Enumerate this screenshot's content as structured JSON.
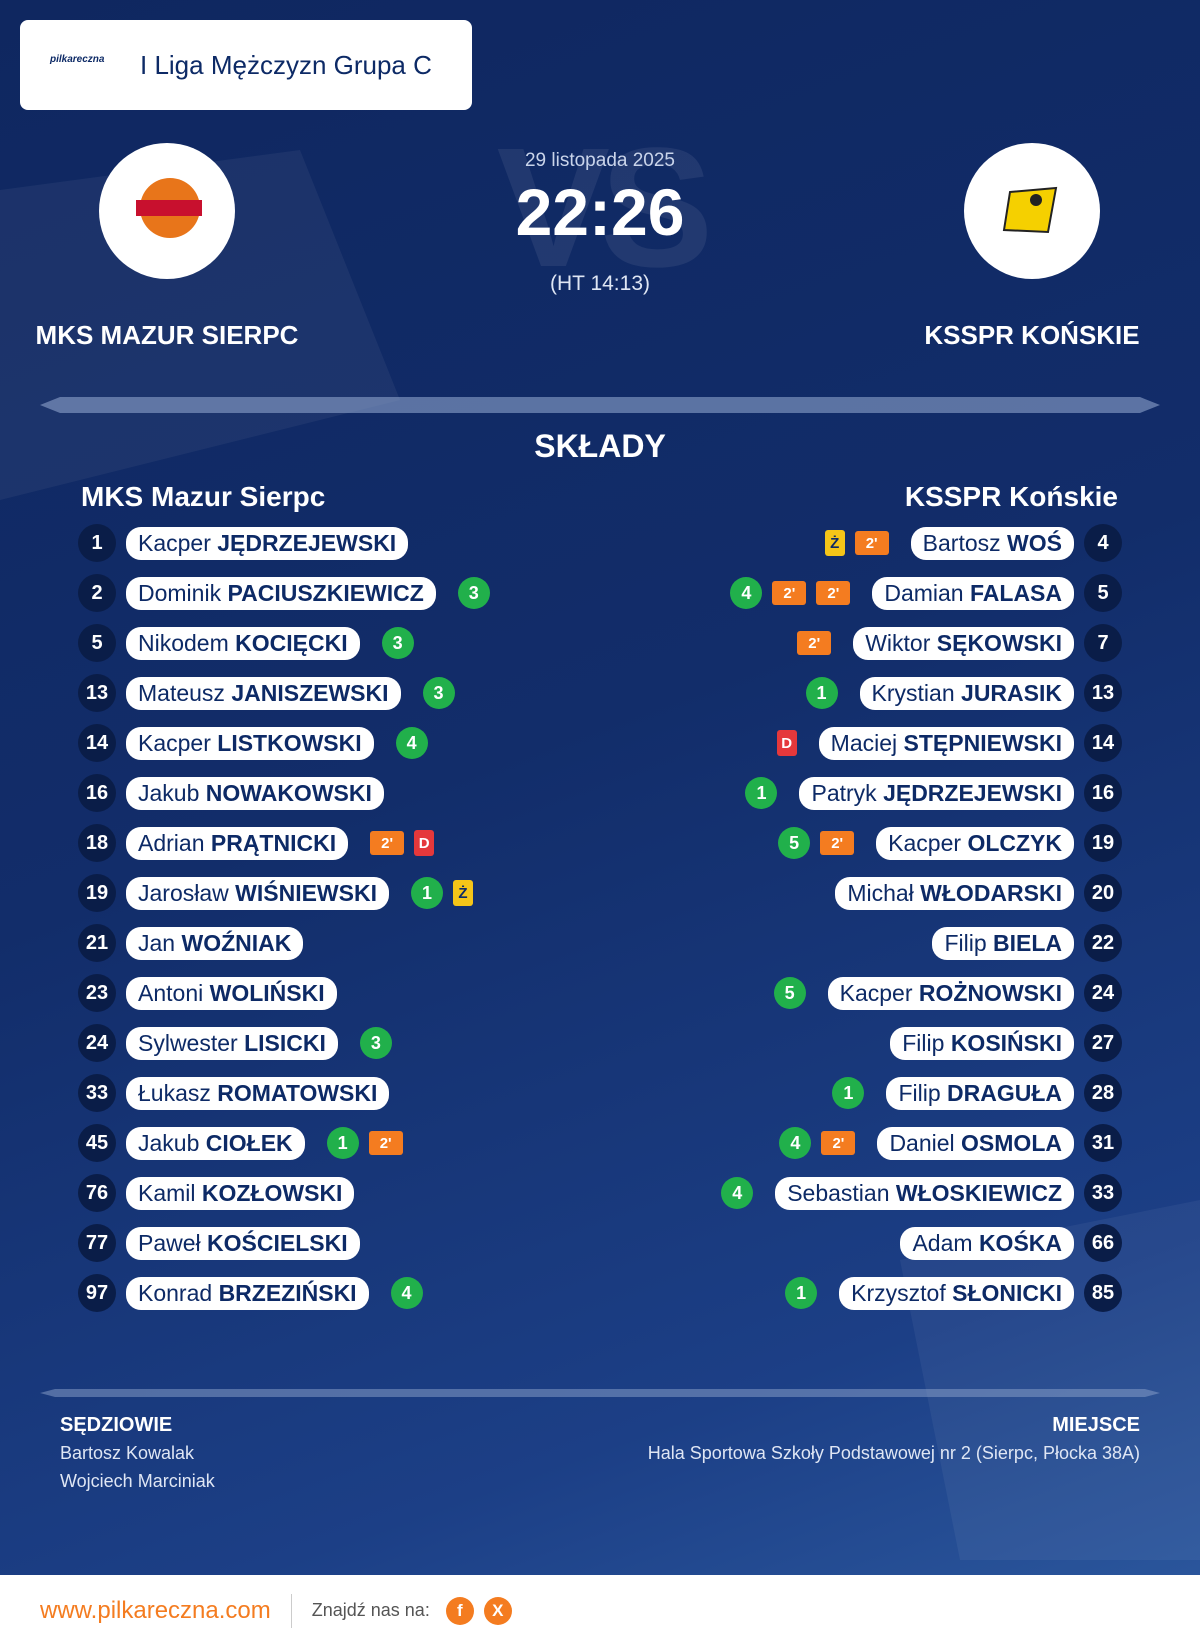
{
  "header": {
    "logo_text": "pilkareczna",
    "league": "I Liga Mężczyzn Grupa C"
  },
  "match": {
    "watermark": "VS",
    "date": "29 listopada 2025",
    "score": "22:26",
    "half_time": "(HT 14:13)",
    "home_team": "MKS MAZUR SIERPC",
    "away_team": "KSSPR KOŃSKIE"
  },
  "lineups": {
    "title": "SKŁADY",
    "home": {
      "name": "MKS Mazur Sierpc",
      "players": [
        {
          "number": 1,
          "first": "Kacper",
          "last": "JĘDRZEJEWSKI"
        },
        {
          "number": 2,
          "first": "Dominik",
          "last": "PACIUSZKIEWICZ",
          "goals": 3
        },
        {
          "number": 5,
          "first": "Nikodem",
          "last": "KOCIĘCKI",
          "goals": 3
        },
        {
          "number": 13,
          "first": "Mateusz",
          "last": "JANISZEWSKI",
          "goals": 3
        },
        {
          "number": 14,
          "first": "Kacper",
          "last": "LISTKOWSKI",
          "goals": 4
        },
        {
          "number": 16,
          "first": "Jakub",
          "last": "NOWAKOWSKI"
        },
        {
          "number": 18,
          "first": "Adrian",
          "last": "PRĄTNICKI",
          "cards": [
            "2'",
            "D"
          ]
        },
        {
          "number": 19,
          "first": "Jarosław",
          "last": "WIŚNIEWSKI",
          "goals": 1,
          "cards": [
            "Ż"
          ]
        },
        {
          "number": 21,
          "first": "Jan",
          "last": "WOŹNIAK"
        },
        {
          "number": 23,
          "first": "Antoni",
          "last": "WOLIŃSKI"
        },
        {
          "number": 24,
          "first": "Sylwester",
          "last": "LISICKI",
          "goals": 3
        },
        {
          "number": 33,
          "first": "Łukasz",
          "last": "ROMATOWSKI"
        },
        {
          "number": 45,
          "first": "Jakub",
          "last": "CIOŁEK",
          "goals": 1,
          "cards": [
            "2'"
          ]
        },
        {
          "number": 76,
          "first": "Kamil",
          "last": "KOZŁOWSKI"
        },
        {
          "number": 77,
          "first": "Paweł",
          "last": "KOŚCIELSKI"
        },
        {
          "number": 97,
          "first": "Konrad",
          "last": "BRZEZIŃSKI",
          "goals": 4
        }
      ]
    },
    "away": {
      "name": "KSSPR Końskie",
      "players": [
        {
          "number": 4,
          "first": "Bartosz",
          "last": "WOŚ",
          "cards": [
            "Ż",
            "2'"
          ]
        },
        {
          "number": 5,
          "first": "Damian",
          "last": "FALASA",
          "goals": 4,
          "cards": [
            "2'",
            "2'"
          ]
        },
        {
          "number": 7,
          "first": "Wiktor",
          "last": "SĘKOWSKI",
          "cards": [
            "2'"
          ]
        },
        {
          "number": 13,
          "first": "Krystian",
          "last": "JURASIK",
          "goals": 1
        },
        {
          "number": 14,
          "first": "Maciej",
          "last": "STĘPNIEWSKI",
          "cards": [
            "D"
          ]
        },
        {
          "number": 16,
          "first": "Patryk",
          "last": "JĘDRZEJEWSKI",
          "goals": 1
        },
        {
          "number": 19,
          "first": "Kacper",
          "last": "OLCZYK",
          "goals": 5,
          "cards": [
            "2'"
          ]
        },
        {
          "number": 20,
          "first": "Michał",
          "last": "WŁODARSKI"
        },
        {
          "number": 22,
          "first": "Filip",
          "last": "BIELA"
        },
        {
          "number": 24,
          "first": "Kacper",
          "last": "ROŻNOWSKI",
          "goals": 5
        },
        {
          "number": 27,
          "first": "Filip",
          "last": "KOSIŃSKI"
        },
        {
          "number": 28,
          "first": "Filip",
          "last": "DRAGUŁA",
          "goals": 1
        },
        {
          "number": 31,
          "first": "Daniel",
          "last": "OSMOLA",
          "goals": 4,
          "cards": [
            "2'"
          ]
        },
        {
          "number": 33,
          "first": "Sebastian",
          "last": "WŁOSKIEWICZ",
          "goals": 4
        },
        {
          "number": 66,
          "first": "Adam",
          "last": "KOŚKA"
        },
        {
          "number": 85,
          "first": "Krzysztof",
          "last": "SŁONICKI",
          "goals": 1
        }
      ]
    }
  },
  "officials": {
    "title": "SĘDZIOWIE",
    "names": [
      "Bartosz Kowalak",
      "Wojciech Marciniak"
    ]
  },
  "venue": {
    "title": "MIEJSCE",
    "name": "Hala Sportowa Szkoły Podstawowej nr 2 (Sierpc, Płocka 38A)"
  },
  "footer": {
    "url": "www.pilkareczna.com",
    "follow": "Znajdź nas na:",
    "social": [
      "f",
      "X"
    ]
  }
}
